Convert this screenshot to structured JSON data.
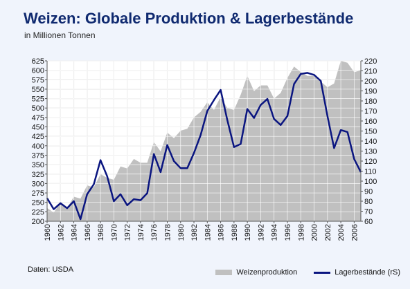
{
  "title": "Weizen: Globale Produktion & Lagerbestände",
  "subtitle": "in Millionen Tonnen",
  "source": "Daten: USDA",
  "colors": {
    "area": "#c0c0c0",
    "line": "#0a1580",
    "title": "#102a70",
    "grid": "#ffffff"
  },
  "chart_data": {
    "type": "area+line",
    "x": [
      1960,
      1961,
      1962,
      1963,
      1964,
      1965,
      1966,
      1967,
      1968,
      1969,
      1970,
      1971,
      1972,
      1973,
      1974,
      1975,
      1976,
      1977,
      1978,
      1979,
      1980,
      1981,
      1982,
      1983,
      1984,
      1985,
      1986,
      1987,
      1988,
      1989,
      1990,
      1991,
      1992,
      1993,
      1994,
      1995,
      1996,
      1997,
      1998,
      1999,
      2000,
      2001,
      2002,
      2003,
      2004,
      2005,
      2006,
      2007
    ],
    "x_tick_labels": [
      "1960",
      "1962",
      "1964",
      "1966",
      "1968",
      "1970",
      "1972",
      "1974",
      "1976",
      "1978",
      "1980",
      "1982",
      "1984",
      "1986",
      "1988",
      "1990",
      "1992",
      "1994",
      "1996",
      "1998",
      "2000",
      "2002",
      "2004",
      "2006"
    ],
    "left_axis": {
      "ylim": [
        200,
        625
      ],
      "ticks": [
        200,
        225,
        250,
        275,
        300,
        325,
        350,
        375,
        400,
        425,
        450,
        475,
        500,
        525,
        550,
        575,
        600,
        625
      ]
    },
    "right_axis": {
      "ylim": [
        60,
        220
      ],
      "ticks": [
        60,
        70,
        80,
        90,
        100,
        110,
        120,
        130,
        140,
        150,
        160,
        170,
        180,
        190,
        200,
        210,
        220
      ]
    },
    "grid": true,
    "legend_position": "bottom-right",
    "series": [
      {
        "name": "Weizenproduktion",
        "type": "area",
        "axis": "left",
        "values": [
          235,
          223,
          250,
          235,
          265,
          260,
          295,
          290,
          325,
          315,
          310,
          345,
          340,
          365,
          355,
          355,
          410,
          385,
          435,
          420,
          440,
          445,
          475,
          490,
          515,
          495,
          530,
          500,
          495,
          535,
          585,
          545,
          560,
          560,
          525,
          540,
          580,
          610,
          595,
          585,
          585,
          570,
          555,
          565,
          625,
          620,
          595,
          600
        ]
      },
      {
        "name": "Lagerbestände (rS)",
        "type": "line",
        "axis": "right",
        "values": [
          83,
          72,
          78,
          73,
          80,
          62,
          87,
          97,
          121,
          105,
          80,
          87,
          76,
          82,
          81,
          88,
          127,
          109,
          136,
          120,
          113,
          113,
          128,
          146,
          170,
          181,
          191,
          161,
          134,
          137,
          172,
          163,
          176,
          182,
          162,
          156,
          165,
          197,
          207,
          208,
          206,
          200,
          165,
          133,
          151,
          149,
          122,
          109
        ]
      }
    ]
  }
}
